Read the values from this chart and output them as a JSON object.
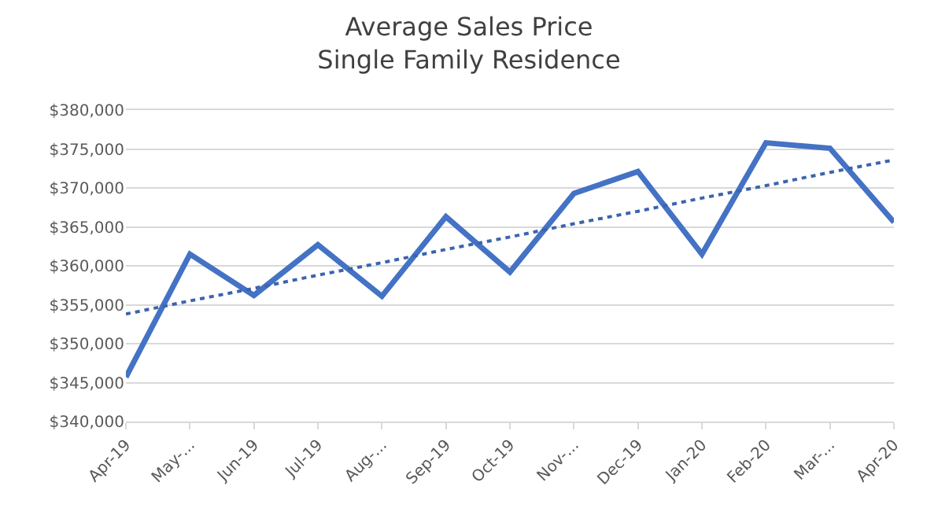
{
  "chart_data": {
    "type": "line",
    "title": "Average Sales Price\nSingle Family Residence",
    "categories": [
      "Apr-19",
      "May-...",
      "Jun-19",
      "Jul-19",
      "Aug-...",
      "Sep-19",
      "Oct-19",
      "Nov-...",
      "Dec-19",
      "Jan-20",
      "Feb-20",
      "Mar-...",
      "Apr-20"
    ],
    "series": [
      {
        "color": "#4472c4",
        "line_style": "solid",
        "values": [
          345700,
          361500,
          356200,
          362700,
          356100,
          366300,
          359200,
          369300,
          372100,
          361500,
          375800,
          375100,
          365600
        ]
      },
      {
        "color": "#3b64ad",
        "line_style": "dotted",
        "values": [
          353800,
          355500,
          357100,
          358800,
          360400,
          362100,
          363700,
          365400,
          367000,
          368700,
          370300,
          372000,
          373600
        ]
      }
    ],
    "ylim": [
      340000,
      380000
    ],
    "yticks": [
      {
        "value": 340000,
        "label": "$340,000"
      },
      {
        "value": 345000,
        "label": "$345,000"
      },
      {
        "value": 350000,
        "label": "$350,000"
      },
      {
        "value": 355000,
        "label": "$355,000"
      },
      {
        "value": 360000,
        "label": "$360,000"
      },
      {
        "value": 365000,
        "label": "$365,000"
      },
      {
        "value": 370000,
        "label": "$370,000"
      },
      {
        "value": 375000,
        "label": "$375,000"
      },
      {
        "value": 380000,
        "label": "$380,000"
      }
    ],
    "grid": "y",
    "marker": "none"
  }
}
